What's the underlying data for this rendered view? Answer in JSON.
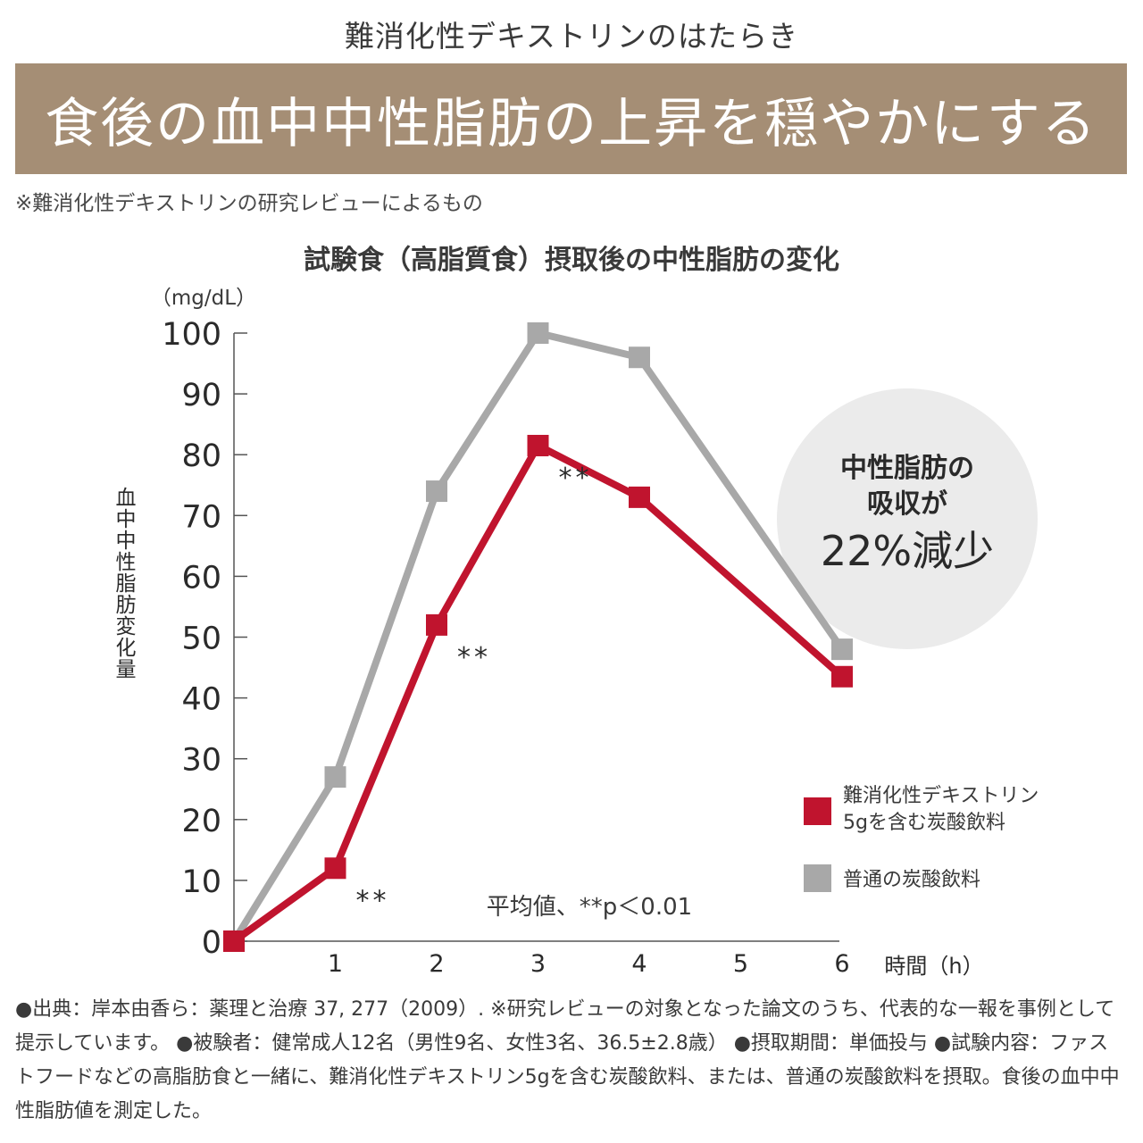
{
  "header": {
    "subtitle": "難消化性デキストリンのはたらき",
    "banner": "食後の血中中性脂肪の上昇を穏やかにする",
    "note": "※難消化性デキストリンの研究レビューによるもの"
  },
  "colors": {
    "banner": "#a58e75",
    "dextrin": "#c0142e",
    "regular": "#a8a8a8",
    "circle": "#ebebeb"
  },
  "chart_data": {
    "type": "line",
    "title": "試験食（高脂質食）摂取後の中性脂肪の変化",
    "unit": "（mg/dL）",
    "ylabel": "血中中性脂肪変化量",
    "xlabel": "時間（h）",
    "ylim": [
      0,
      100
    ],
    "yticks": [
      "0",
      "10",
      "20",
      "30",
      "40",
      "50",
      "60",
      "70",
      "80",
      "90",
      "100"
    ],
    "xticks": [
      "1",
      "2",
      "3",
      "4",
      "5",
      "6"
    ],
    "series": [
      {
        "name": "難消化性デキストリン5gを含む炭酸飲料",
        "legend_lines": [
          "難消化性デキストリン",
          "5gを含む炭酸飲料"
        ],
        "x": [
          0,
          1,
          2,
          3,
          4,
          6
        ],
        "values": [
          0,
          12,
          52,
          81.5,
          73,
          43.5
        ]
      },
      {
        "name": "普通の炭酸飲料",
        "legend_lines": [
          "普通の炭酸飲料"
        ],
        "x": [
          0,
          1,
          2,
          3,
          4,
          6
        ],
        "values": [
          0,
          27,
          74,
          100,
          96,
          48
        ]
      }
    ],
    "significance": [
      {
        "x": 1,
        "label": "**"
      },
      {
        "x": 2,
        "label": "**"
      },
      {
        "x": 3,
        "label": "**"
      }
    ],
    "stat_note": "平均値、**p＜0.01",
    "callout": {
      "line1": "中性脂肪の",
      "line2": "吸収が",
      "line3": "22%減少"
    }
  },
  "footnote": "●出典：岸本由香ら：薬理と治療 37, 277（2009）. ※研究レビューの対象となった論文のうち、代表的な一報を事例として提示しています。 ●被験者：健常成人12名（男性9名、女性3名、36.5±2.8歳） ●摂取期間：単価投与 ●試験内容：ファストフードなどの高脂肪食と一緒に、難消化性デキストリン5gを含む炭酸飲料、または、普通の炭酸飲料を摂取。食後の血中中性脂肪値を測定した。"
}
